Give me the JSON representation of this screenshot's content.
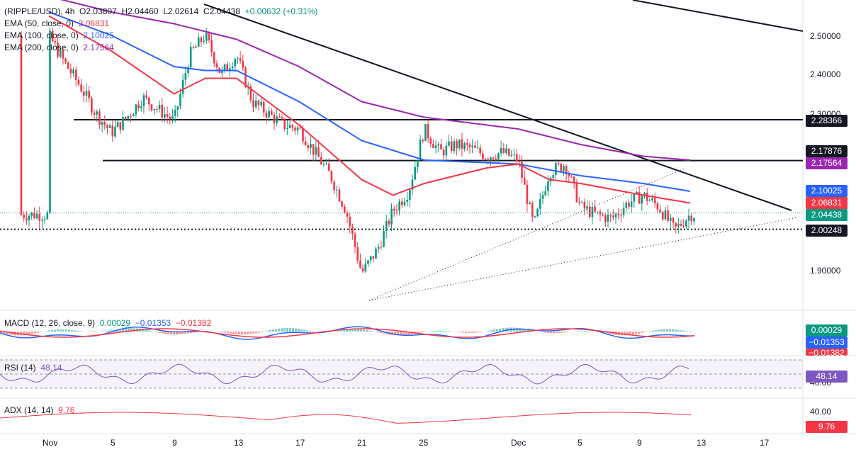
{
  "header": {
    "symbol": "(RIPPLE/USD), 4h",
    "ohlc": [
      {
        "k": "O",
        "v": "2.03807"
      },
      {
        "k": "H",
        "v": "2.04460"
      },
      {
        "k": "L",
        "v": "2.02614"
      },
      {
        "k": "C",
        "v": "2.04438"
      }
    ],
    "change": "+0.00632 (+0.31%)",
    "change_color": "#089981"
  },
  "indicators": {
    "ema50": {
      "label": "EMA (50, close, 0)",
      "value": "2.06831",
      "color": "#f23645"
    },
    "ema100": {
      "label": "EMA (100, close, 0)",
      "value": "2.10025",
      "color": "#2962ff"
    },
    "ema200": {
      "label": "EMA (200, close, 0)",
      "value": "2.17564",
      "color": "#9c27b0"
    }
  },
  "macd": {
    "label": "MACD (12, 26, close, 9)",
    "values": [
      "0.00029",
      "−0.01353",
      "−0.01382"
    ],
    "colors": [
      "#089981",
      "#2962ff",
      "#f23645"
    ]
  },
  "rsi": {
    "label": "RSI (14)",
    "value": "48.14",
    "color": "#7e57c2",
    "axis": "40.00"
  },
  "adx": {
    "label": "ADX (14, 14)",
    "value": "9.76",
    "color": "#f23645",
    "axis": "40.00"
  },
  "price_axis": {
    "ticks": [
      "2.50000",
      "2.40000",
      "2.30000",
      "1.90000"
    ],
    "tags": [
      {
        "value": "2.28366",
        "bg": "#131722"
      },
      {
        "value": "2.17876",
        "bg": "#131722"
      },
      {
        "value": "2.17564",
        "bg": "#9c27b0"
      },
      {
        "value": "2.10025",
        "bg": "#2962ff"
      },
      {
        "value": "2.06831",
        "bg": "#f23645"
      },
      {
        "value": "2.04438",
        "bg": "#089981"
      },
      {
        "value": "2.00248",
        "bg": "#131722"
      }
    ],
    "macd_tags": [
      {
        "value": "0.00029",
        "bg": "#089981"
      },
      {
        "value": "−0.01353",
        "bg": "#2962ff"
      },
      {
        "value": "−0.01382",
        "bg": "#f23645"
      }
    ]
  },
  "time_axis": [
    "Nov",
    "5",
    "9",
    "13",
    "17",
    "21",
    "25",
    "Dec",
    "5",
    "9",
    "13",
    "17"
  ],
  "chart_data": {
    "type": "candlestick",
    "interval": "4h",
    "ylim": [
      1.83,
      2.58
    ],
    "price_ticks": [
      2.5,
      2.4,
      2.3,
      1.9
    ],
    "x": [
      "Nov 1",
      "Nov 5",
      "Nov 9",
      "Nov 13",
      "Nov 17",
      "Nov 21",
      "Nov 25",
      "Dec 1",
      "Dec 5",
      "Dec 9",
      "Dec 13",
      "Dec 17"
    ],
    "close_path": [
      [
        "Nov 1",
        2.5
      ],
      [
        "Nov 2",
        2.43
      ],
      [
        "Nov 3",
        2.37
      ],
      [
        "Nov 4",
        2.3
      ],
      [
        "Nov 5",
        2.25
      ],
      [
        "Nov 6",
        2.29
      ],
      [
        "Nov 7",
        2.34
      ],
      [
        "Nov 8",
        2.31
      ],
      [
        "Nov 9",
        2.28
      ],
      [
        "Nov 10",
        2.45
      ],
      [
        "Nov 11",
        2.5
      ],
      [
        "Nov 12",
        2.4
      ],
      [
        "Nov 13",
        2.45
      ],
      [
        "Nov 14",
        2.33
      ],
      [
        "Nov 15",
        2.3
      ],
      [
        "Nov 16",
        2.27
      ],
      [
        "Nov 17",
        2.26
      ],
      [
        "Nov 18",
        2.2
      ],
      [
        "Nov 19",
        2.14
      ],
      [
        "Nov 20",
        2.05
      ],
      [
        "Nov 21",
        1.89
      ],
      [
        "Nov 22",
        1.95
      ],
      [
        "Nov 23",
        2.05
      ],
      [
        "Nov 24",
        2.1
      ],
      [
        "Nov 25",
        2.26
      ],
      [
        "Nov 26",
        2.2
      ],
      [
        "Nov 27",
        2.22
      ],
      [
        "Nov 28",
        2.21
      ],
      [
        "Nov 29",
        2.19
      ],
      [
        "Nov 30",
        2.2
      ],
      [
        "Dec 1",
        2.18
      ],
      [
        "Dec 2",
        2.01
      ],
      [
        "Dec 3",
        2.15
      ],
      [
        "Dec 4",
        2.17
      ],
      [
        "Dec 5",
        2.06
      ],
      [
        "Dec 6",
        2.04
      ],
      [
        "Dec 7",
        2.03
      ],
      [
        "Dec 8",
        2.07
      ],
      [
        "Dec 9",
        2.09
      ],
      [
        "Dec 10",
        2.06
      ],
      [
        "Dec 11",
        2.0
      ],
      [
        "Dec 12",
        2.04
      ]
    ],
    "horizontal_levels": [
      2.28366,
      2.17876,
      2.00248
    ],
    "last_price": 2.04438,
    "ema": [
      {
        "name": "EMA 50",
        "color": "#f23645",
        "last": 2.06831
      },
      {
        "name": "EMA 100",
        "color": "#2962ff",
        "last": 2.10025
      },
      {
        "name": "EMA 200",
        "color": "#9c27b0",
        "last": 2.17564
      }
    ],
    "ema50_path": [
      [
        "Nov 1",
        2.55
      ],
      [
        "Nov 5",
        2.46
      ],
      [
        "Nov 9",
        2.35
      ],
      [
        "Nov 11",
        2.39
      ],
      [
        "Nov 13",
        2.39
      ],
      [
        "Nov 17",
        2.27
      ],
      [
        "Nov 21",
        2.13
      ],
      [
        "Nov 23",
        2.09
      ],
      [
        "Nov 25",
        2.12
      ],
      [
        "Nov 29",
        2.16
      ],
      [
        "Dec 1",
        2.17
      ],
      [
        "Dec 3",
        2.13
      ],
      [
        "Dec 5",
        2.12
      ],
      [
        "Dec 9",
        2.09
      ],
      [
        "Dec 12",
        2.07
      ]
    ],
    "ema100_path": [
      [
        "Nov 1",
        2.56
      ],
      [
        "Nov 5",
        2.5
      ],
      [
        "Nov 9",
        2.42
      ],
      [
        "Nov 11",
        2.41
      ],
      [
        "Nov 13",
        2.41
      ],
      [
        "Nov 17",
        2.33
      ],
      [
        "Nov 21",
        2.23
      ],
      [
        "Nov 25",
        2.18
      ],
      [
        "Dec 1",
        2.17
      ],
      [
        "Dec 5",
        2.14
      ],
      [
        "Dec 9",
        2.12
      ],
      [
        "Dec 12",
        2.1
      ]
    ],
    "ema200_path": [
      [
        "Nov 1",
        2.6
      ],
      [
        "Nov 5",
        2.56
      ],
      [
        "Nov 9",
        2.53
      ],
      [
        "Nov 13",
        2.49
      ],
      [
        "Nov 17",
        2.42
      ],
      [
        "Nov 21",
        2.33
      ],
      [
        "Nov 25",
        2.29
      ],
      [
        "Dec 1",
        2.26
      ],
      [
        "Dec 5",
        2.22
      ],
      [
        "Dec 9",
        2.19
      ],
      [
        "Dec 12",
        2.18
      ]
    ]
  }
}
